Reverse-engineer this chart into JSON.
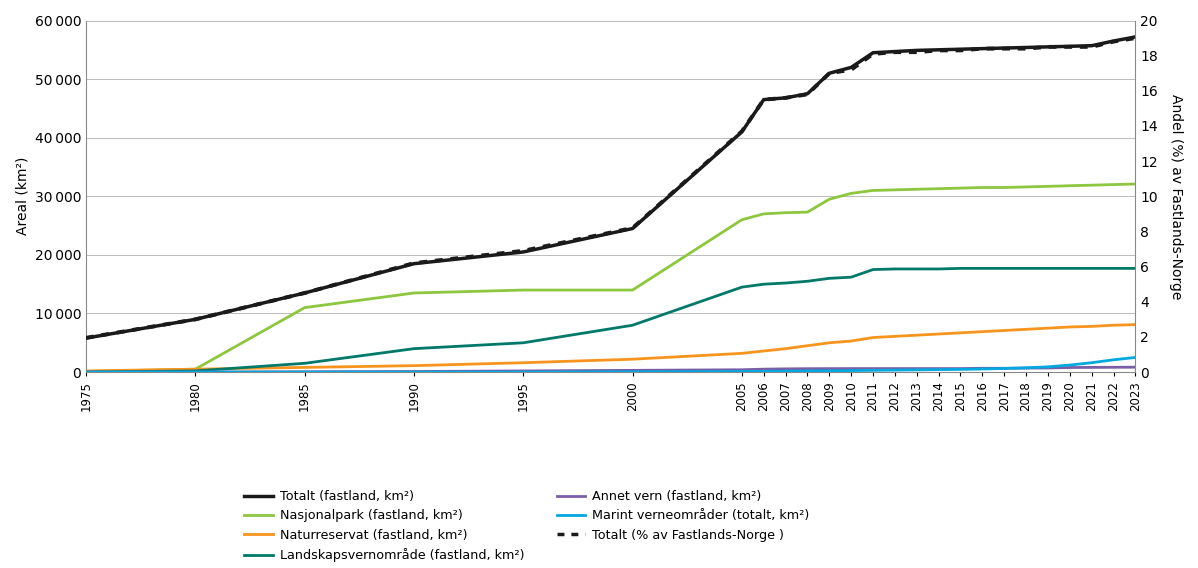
{
  "years": [
    1975,
    1980,
    1985,
    1990,
    1995,
    2000,
    2005,
    2006,
    2007,
    2008,
    2009,
    2010,
    2011,
    2012,
    2013,
    2014,
    2015,
    2016,
    2017,
    2018,
    2019,
    2020,
    2021,
    2022,
    2023
  ],
  "totalt_fastland": [
    5800,
    9000,
    13500,
    18500,
    20500,
    24500,
    41000,
    46500,
    46800,
    47500,
    51000,
    52000,
    54500,
    54700,
    54900,
    55000,
    55100,
    55200,
    55300,
    55400,
    55500,
    55600,
    55700,
    56500,
    57200
  ],
  "nasjonalpark": [
    100,
    500,
    11000,
    13500,
    14000,
    14000,
    26000,
    27000,
    27200,
    27300,
    29500,
    30500,
    31000,
    31100,
    31200,
    31300,
    31400,
    31500,
    31500,
    31600,
    31700,
    31800,
    31900,
    32000,
    32100
  ],
  "naturreservat": [
    200,
    500,
    800,
    1100,
    1600,
    2200,
    3200,
    3600,
    4000,
    4500,
    5000,
    5300,
    5900,
    6100,
    6300,
    6500,
    6700,
    6900,
    7100,
    7300,
    7500,
    7700,
    7800,
    8000,
    8100
  ],
  "landskapsvernomrade": [
    0,
    200,
    1500,
    4000,
    5000,
    8000,
    14500,
    15000,
    15200,
    15500,
    16000,
    16200,
    17500,
    17600,
    17600,
    17600,
    17700,
    17700,
    17700,
    17700,
    17700,
    17700,
    17700,
    17700,
    17700
  ],
  "annet_vern": [
    0,
    0,
    50,
    100,
    200,
    300,
    400,
    500,
    550,
    580,
    590,
    600,
    600,
    600,
    600,
    600,
    600,
    650,
    650,
    680,
    700,
    780,
    800,
    820,
    840
  ],
  "marint_verneomrader": [
    0,
    0,
    0,
    0,
    0,
    50,
    100,
    130,
    160,
    190,
    220,
    260,
    300,
    340,
    380,
    420,
    460,
    530,
    620,
    730,
    900,
    1200,
    1600,
    2100,
    2500
  ],
  "totalt_pst": [
    1.95,
    3.0,
    4.5,
    6.2,
    6.9,
    8.2,
    13.7,
    15.5,
    15.6,
    15.8,
    17.0,
    17.2,
    18.1,
    18.2,
    18.2,
    18.3,
    18.3,
    18.4,
    18.4,
    18.4,
    18.5,
    18.5,
    18.5,
    18.8,
    19.0
  ],
  "colors": {
    "totalt_fastland": "#1a1a1a",
    "nasjonalpark": "#8dc63f",
    "naturreservat": "#f7941d",
    "landskapsvernomrade": "#00796b",
    "annet_vern": "#7b5ea7",
    "marint_verneomrader": "#00a8e0",
    "totalt_pst": "#1a1a1a"
  },
  "ylabel_left": "Areal (km²)",
  "ylabel_right": "Andel (%) av Fastlands-Norge",
  "ylim_left": [
    0,
    60000
  ],
  "ylim_right": [
    0,
    20
  ],
  "yticks_left": [
    0,
    10000,
    20000,
    30000,
    40000,
    50000,
    60000
  ],
  "yticks_right": [
    0,
    2,
    4,
    6,
    8,
    10,
    12,
    14,
    16,
    18,
    20
  ],
  "ytick_labels_left": [
    "0",
    "10 000",
    "20 000",
    "30 000",
    "40 000",
    "50 000",
    "60 000"
  ],
  "xtick_labels": [
    "1975",
    "1980",
    "1985",
    "1990",
    "1995",
    "2000",
    "2005",
    "2006",
    "2007",
    "2008",
    "2009",
    "2010",
    "2011",
    "2012",
    "2013",
    "2014",
    "2015",
    "2016",
    "2017",
    "2018",
    "2019",
    "2020",
    "2021",
    "2022",
    "2023"
  ],
  "legend_entries_col1": [
    {
      "label": "Totalt (fastland, km²)",
      "color": "#1a1a1a",
      "linestyle": "solid",
      "linewidth": 2.5
    },
    {
      "label": "Naturreservat (fastland, km²)",
      "color": "#f7941d",
      "linestyle": "solid",
      "linewidth": 2.0
    },
    {
      "label": "Annet vern (fastland, km²)",
      "color": "#7b5ea7",
      "linestyle": "solid",
      "linewidth": 2.0
    },
    {
      "label": "Totalt (% av Fastlands-Norge )",
      "color": "#1a1a1a",
      "linestyle": "dotted",
      "linewidth": 2.5
    }
  ],
  "legend_entries_col2": [
    {
      "label": "Nasjonalpark (fastland, km²)",
      "color": "#8dc63f",
      "linestyle": "solid",
      "linewidth": 2.0
    },
    {
      "label": "Landskapsvernområde (fastland, km²)",
      "color": "#00796b",
      "linestyle": "solid",
      "linewidth": 2.0
    },
    {
      "label": "Marint verneområder (totalt, km²)",
      "color": "#00a8e0",
      "linestyle": "solid",
      "linewidth": 2.0
    }
  ],
  "background_color": "#ffffff",
  "grid_color": "#bbbbbb",
  "fontsize": 10
}
